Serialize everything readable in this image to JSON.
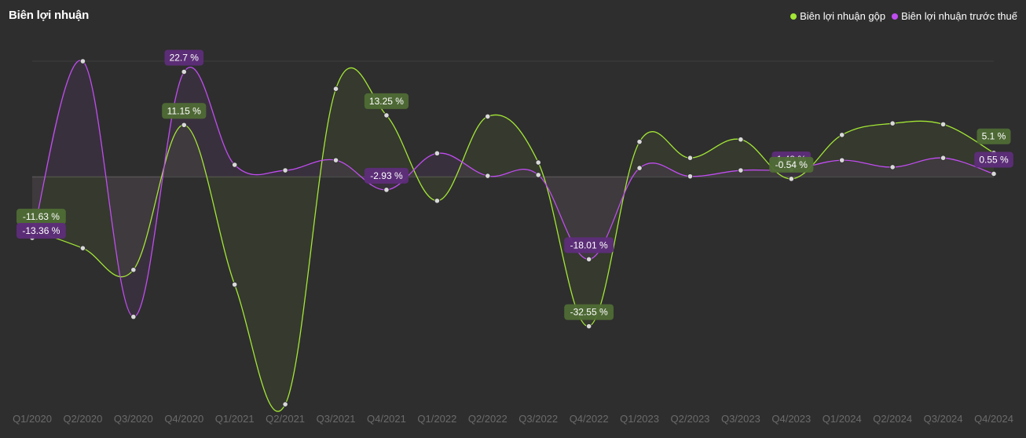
{
  "title": "Biên lợi nhuận",
  "legend": [
    {
      "name": "Biên lợi nhuận gộp",
      "color": "#a3e635"
    },
    {
      "name": "Biên lợi nhuận trước thuế",
      "color": "#c04df0"
    }
  ],
  "chart_data": {
    "type": "line",
    "title": "Biên lợi nhuận",
    "xlabel": "",
    "ylabel": "",
    "ylim": [
      -50,
      25
    ],
    "grid": false,
    "legend_position": "top-right",
    "categories": [
      "Q1/2020",
      "Q2/2020",
      "Q3/2020",
      "Q4/2020",
      "Q1/2021",
      "Q2/2021",
      "Q3/2021",
      "Q4/2021",
      "Q1/2022",
      "Q2/2022",
      "Q3/2022",
      "Q4/2022",
      "Q1/2023",
      "Q2/2023",
      "Q3/2023",
      "Q4/2023",
      "Q1/2024",
      "Q2/2024",
      "Q3/2024",
      "Q4/2024"
    ],
    "series": [
      {
        "name": "Biên lợi nhuận gộp",
        "color": "#a3e635",
        "values": [
          -11.63,
          -15.6,
          -20.3,
          11.15,
          -23.5,
          -49.5,
          19.0,
          13.25,
          -5.3,
          13.0,
          3.0,
          -32.55,
          7.5,
          4.0,
          8.0,
          -0.54,
          9.0,
          11.5,
          11.3,
          5.1
        ]
      },
      {
        "name": "Biên lợi nhuận trước thuế",
        "color": "#c04df0",
        "values": [
          -13.36,
          25.0,
          -30.5,
          22.7,
          2.5,
          1.3,
          3.5,
          -2.93,
          5.0,
          0.1,
          0.3,
          -18.01,
          1.8,
          0.0,
          1.3,
          1.48,
          3.5,
          2.0,
          4.0,
          0.55
        ]
      }
    ],
    "data_labels": [
      {
        "series": 0,
        "index": 0,
        "text": "-11.63 %"
      },
      {
        "series": 1,
        "index": 0,
        "text": "-13.36 %"
      },
      {
        "series": 1,
        "index": 3,
        "text": "22.7 %"
      },
      {
        "series": 0,
        "index": 3,
        "text": "11.15 %"
      },
      {
        "series": 0,
        "index": 7,
        "text": "13.25 %"
      },
      {
        "series": 1,
        "index": 7,
        "text": "-2.93 %"
      },
      {
        "series": 1,
        "index": 11,
        "text": "-18.01 %"
      },
      {
        "series": 0,
        "index": 11,
        "text": "-32.55 %"
      },
      {
        "series": 1,
        "index": 15,
        "text": "1.48 %"
      },
      {
        "series": 0,
        "index": 15,
        "text": "-0.54 %"
      },
      {
        "series": 0,
        "index": 19,
        "text": "5.1 %"
      },
      {
        "series": 1,
        "index": 19,
        "text": "0.55 %"
      }
    ]
  }
}
